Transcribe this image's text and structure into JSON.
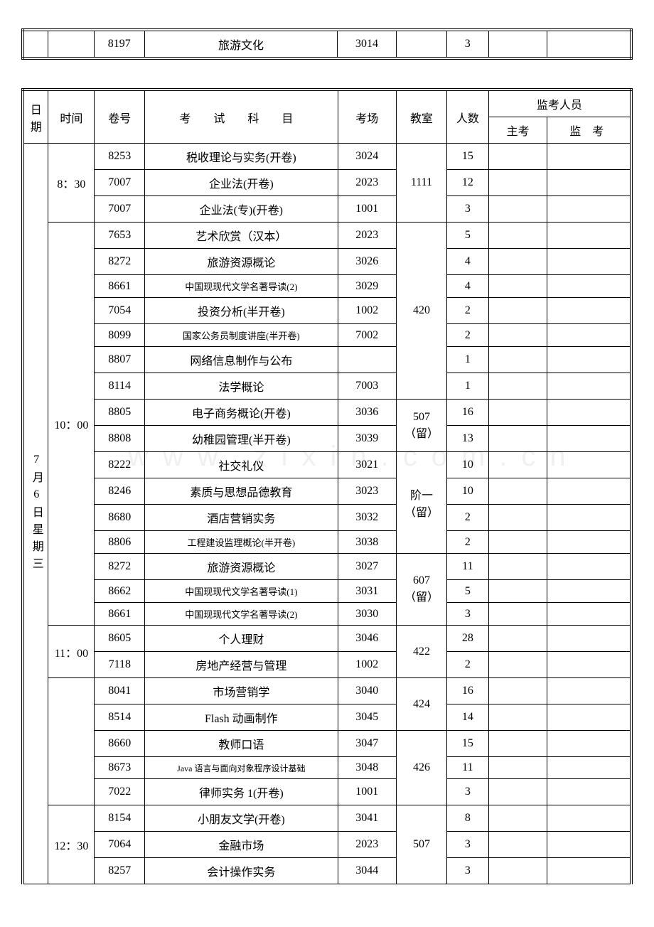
{
  "top_table": {
    "row": {
      "code": "8197",
      "subject": "旅游文化",
      "venue": "3014",
      "room": "",
      "count": "3",
      "chief": "",
      "proctor": ""
    }
  },
  "headers": {
    "date": "日期",
    "time": "时间",
    "code": "卷号",
    "subject": "考 试 科 目",
    "venue": "考场",
    "room": "教室",
    "count": "人数",
    "staff": "监考人员",
    "chief": "主考",
    "proctor": "监  考"
  },
  "date_label": "7月6日星期三",
  "time_groups": {
    "t830": "8：30",
    "t1000": "10：00",
    "t1100": "11：00",
    "t1230": "12：30"
  },
  "rooms": {
    "r1111": "1111",
    "r420": "420",
    "r507a": "507（留）",
    "r_jie": "阶一（留）",
    "r607": "607（留）",
    "r422": "422",
    "r424": "424",
    "r426": "426",
    "r507": "507"
  },
  "rows": [
    {
      "code": "8253",
      "subject": "税收理论与实务(开卷)",
      "venue": "3024",
      "count": "15"
    },
    {
      "code": "7007",
      "subject": "企业法(开卷)",
      "venue": "2023",
      "count": "12"
    },
    {
      "code": "7007",
      "subject": "企业法(专)(开卷)",
      "venue": "1001",
      "count": "3"
    },
    {
      "code": "7653",
      "subject": "艺术欣赏（汉本）",
      "venue": "2023",
      "count": "5"
    },
    {
      "code": "8272",
      "subject": "旅游资源概论",
      "venue": "3026",
      "count": "4"
    },
    {
      "code": "8661",
      "subject": "中国现现代文学名著导读(2)",
      "venue": "3029",
      "count": "4",
      "small": true
    },
    {
      "code": "7054",
      "subject": "投资分析(半开卷)",
      "venue": "1002",
      "count": "2"
    },
    {
      "code": "8099",
      "subject": "国家公务员制度讲座(半开卷)",
      "venue": "7002",
      "count": "2",
      "small": true
    },
    {
      "code": "8807",
      "subject": "网络信息制作与公布",
      "venue": "",
      "count": "1"
    },
    {
      "code": "8114",
      "subject": "法学概论",
      "venue": "7003",
      "count": "1"
    },
    {
      "code": "8805",
      "subject": "电子商务概论(开卷)",
      "venue": "3036",
      "count": "16"
    },
    {
      "code": "8808",
      "subject": "幼稚园管理(半开卷)",
      "venue": "3039",
      "count": "13"
    },
    {
      "code": "8222",
      "subject": "社交礼仪",
      "venue": "3021",
      "count": "10"
    },
    {
      "code": "8246",
      "subject": "素质与思想品德教育",
      "venue": "3023",
      "count": "10"
    },
    {
      "code": "8680",
      "subject": "酒店营销实务",
      "venue": "3032",
      "count": "2"
    },
    {
      "code": "8806",
      "subject": "工程建设监理概论(半开卷)",
      "venue": "3038",
      "count": "2",
      "small": true
    },
    {
      "code": "8272",
      "subject": "旅游资源概论",
      "venue": "3027",
      "count": "11"
    },
    {
      "code": "8662",
      "subject": "中国现现代文学名著导读(1)",
      "venue": "3031",
      "count": "5",
      "small": true
    },
    {
      "code": "8661",
      "subject": "中国现现代文学名著导读(2)",
      "venue": "3030",
      "count": "3",
      "small": true
    },
    {
      "code": "8605",
      "subject": "个人理财",
      "venue": "3046",
      "count": "28"
    },
    {
      "code": "7118",
      "subject": "房地产经营与管理",
      "venue": "1002",
      "count": "2"
    },
    {
      "code": "8041",
      "subject": "市场营销学",
      "venue": "3040",
      "count": "16"
    },
    {
      "code": "8514",
      "subject": "Flash 动画制作",
      "venue": "3045",
      "count": "14"
    },
    {
      "code": "8660",
      "subject": "教师口语",
      "venue": "3047",
      "count": "15"
    },
    {
      "code": "8673",
      "subject": "Java 语言与面向对象程序设计基础",
      "venue": "3048",
      "count": "11",
      "smaller": true
    },
    {
      "code": "7022",
      "subject": "律师实务 1(开卷)",
      "venue": "1001",
      "count": "3"
    },
    {
      "code": "8154",
      "subject": "小朋友文学(开卷)",
      "venue": "3041",
      "count": "8"
    },
    {
      "code": "7064",
      "subject": "金融市场",
      "venue": "2023",
      "count": "3"
    },
    {
      "code": "8257",
      "subject": "会计操作实务",
      "venue": "3044",
      "count": "3"
    }
  ]
}
